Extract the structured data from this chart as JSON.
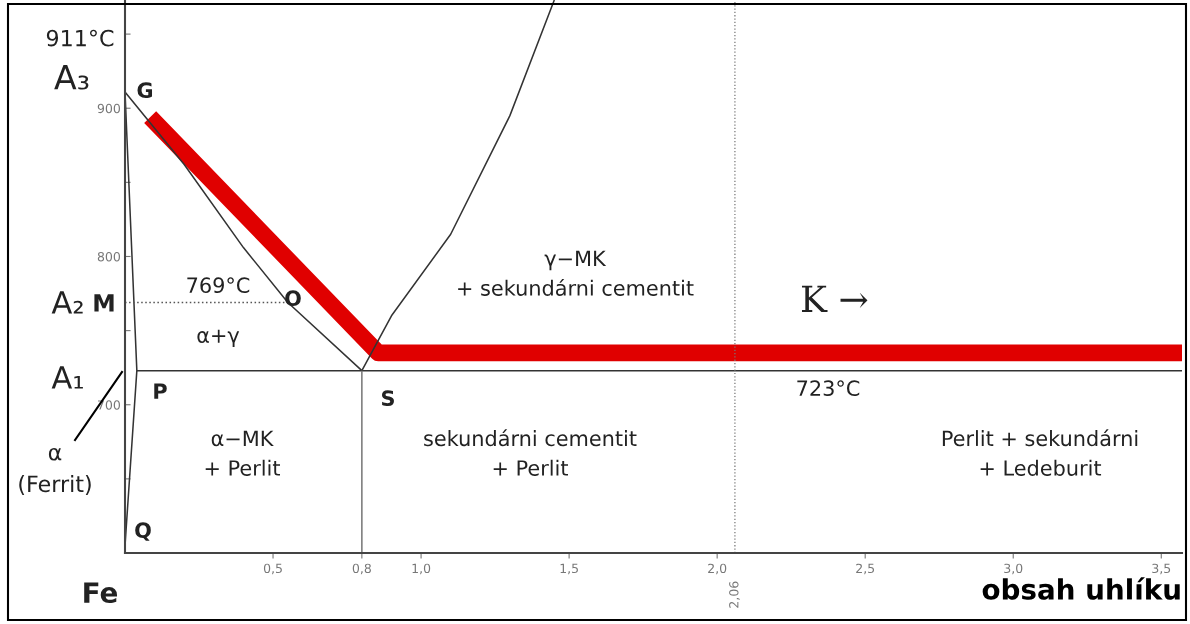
{
  "chart_data": {
    "type": "line",
    "xlabel": "obsah uhlíku",
    "xlim": [
      0,
      3.57
    ],
    "ylim": [
      600,
      973
    ],
    "xticks": [
      {
        "value": 0.5,
        "label": "0,5"
      },
      {
        "value": 0.8,
        "label": "0,8"
      },
      {
        "value": 1.0,
        "label": "1,0"
      },
      {
        "value": 1.5,
        "label": "1,5"
      },
      {
        "value": 2.0,
        "label": "2,0"
      },
      {
        "value": 2.5,
        "label": "2,5"
      },
      {
        "value": 3.0,
        "label": "3,0"
      },
      {
        "value": 3.5,
        "label": "3,5"
      }
    ],
    "yticks": [
      {
        "value": 650,
        "label": null
      },
      700,
      {
        "value": 750,
        "label": null
      },
      800,
      {
        "value": 850,
        "label": null
      },
      900,
      {
        "value": 950,
        "label": null
      }
    ],
    "grid": false,
    "marker": "none",
    "series": [
      {
        "color": "#e00000",
        "x": [
          0.085,
          0.855,
          3.57
        ],
        "values": [
          894,
          735,
          735
        ],
        "line_style": "solid"
      },
      {
        "color": "#333333",
        "x": [
          0,
          0.2,
          0.4,
          0.55,
          0.8
        ],
        "values": [
          911,
          862,
          806,
          769,
          723
        ],
        "line_style": "solid"
      },
      {
        "color": "#333333",
        "x": [
          0,
          0.04,
          0
        ],
        "values": [
          911,
          723,
          605
        ],
        "line_style": "solid"
      },
      {
        "color": "#333333",
        "x": [
          0.04,
          3.57
        ],
        "values": [
          723,
          723
        ],
        "line_style": "solid"
      },
      {
        "color": "#333333",
        "x": [
          0.8,
          0.9,
          1.1,
          1.3,
          1.45
        ],
        "values": [
          723,
          760,
          815,
          895,
          973
        ],
        "line_style": "solid"
      },
      {
        "color": "#555555",
        "x": [
          0,
          0.55
        ],
        "values": [
          769,
          769
        ],
        "line_style": "dotted"
      },
      {
        "color": "#777777",
        "x": [
          0.8,
          0.8
        ],
        "values": [
          600,
          723
        ],
        "line_style": "solid"
      }
    ],
    "ref_lines": [
      {
        "axis": "x",
        "value": 2.06,
        "label": "2,06",
        "color": "#777777",
        "line_style": "dotted"
      }
    ],
    "annotations": [
      "911°C",
      "A₃",
      "A₂",
      "M",
      "A₁",
      "Fe",
      "α\n(Ferrit)",
      "G",
      "O",
      "P",
      "S",
      "Q",
      "769°C",
      "α+γ",
      "α−MK\n+ Perlit",
      "γ−MK\n+ sekundárni cementit",
      "K →",
      "723°C",
      "sekundárni cementit\n+ Perlit",
      "Perlit + sekundárni\n+ Ledeburit"
    ]
  }
}
